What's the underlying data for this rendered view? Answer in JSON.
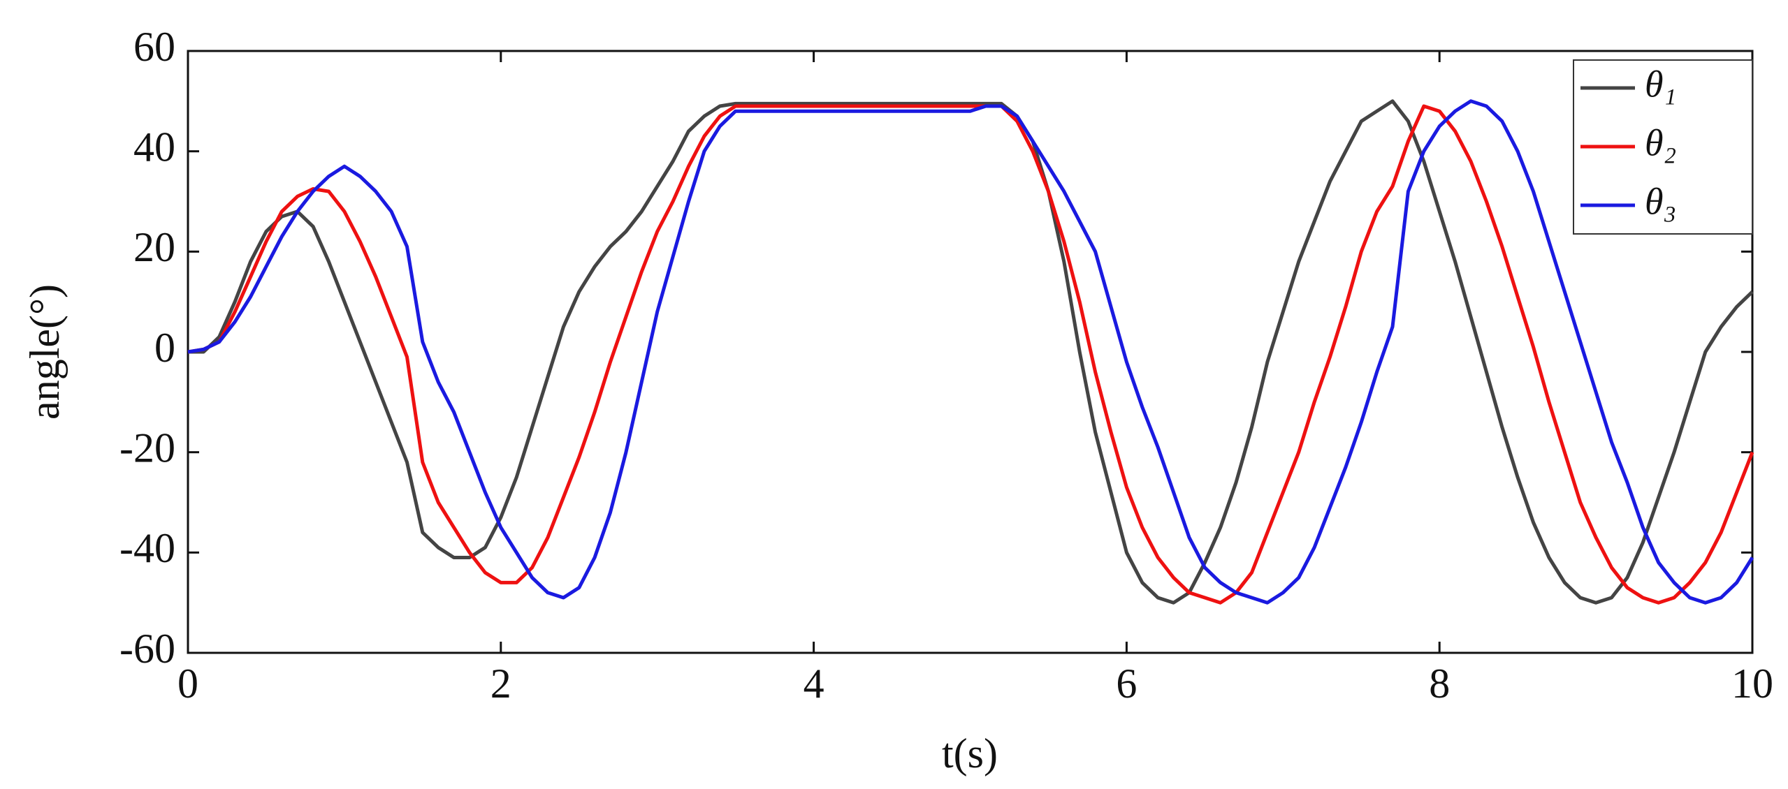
{
  "chart_data": {
    "type": "line",
    "xlabel": "t(s)",
    "ylabel": "angle(°)",
    "xlim": [
      0,
      10
    ],
    "ylim": [
      -60,
      60
    ],
    "xticks": [
      0,
      2,
      4,
      6,
      8,
      10
    ],
    "yticks": [
      -60,
      -40,
      -20,
      0,
      20,
      40,
      60
    ],
    "legend": "upper right",
    "x": [
      0,
      0.1,
      0.2,
      0.3,
      0.4,
      0.5,
      0.6,
      0.7,
      0.8,
      0.9,
      1,
      1.1,
      1.2,
      1.3,
      1.4,
      1.5,
      1.6,
      1.7,
      1.8,
      1.9,
      2,
      2.1,
      2.2,
      2.3,
      2.4,
      2.5,
      2.6,
      2.7,
      2.8,
      2.9,
      3,
      3.1,
      3.2,
      3.3,
      3.4,
      3.5,
      3.6,
      3.7,
      3.8,
      3.9,
      4,
      4.1,
      4.2,
      4.3,
      4.4,
      4.5,
      4.6,
      4.7,
      4.8,
      4.9,
      5,
      5.1,
      5.2,
      5.3,
      5.4,
      5.5,
      5.6,
      5.7,
      5.8,
      5.9,
      6,
      6.1,
      6.2,
      6.3,
      6.4,
      6.5,
      6.6,
      6.7,
      6.8,
      6.9,
      7,
      7.1,
      7.2,
      7.3,
      7.4,
      7.5,
      7.6,
      7.7,
      7.8,
      7.9,
      8,
      8.1,
      8.2,
      8.3,
      8.4,
      8.5,
      8.6,
      8.7,
      8.8,
      8.9,
      9,
      9.1,
      9.2,
      9.3,
      9.4,
      9.5,
      9.6,
      9.7,
      9.8,
      9.9,
      10
    ],
    "series": [
      {
        "name": "θ₁",
        "color": "#444444",
        "values": [
          0,
          0,
          3,
          10,
          18,
          24,
          27,
          28,
          25,
          18,
          10,
          2,
          -6,
          -14,
          -22,
          -36,
          -39,
          -41,
          -41,
          -39,
          -33,
          -25,
          -15,
          -5,
          5,
          12,
          17,
          21,
          24,
          28,
          33,
          38,
          44,
          47,
          49,
          49.5,
          49.5,
          49.5,
          49.5,
          49.5,
          49.5,
          49.5,
          49.5,
          49.5,
          49.5,
          49.5,
          49.5,
          49.5,
          49.5,
          49.5,
          49.5,
          49.5,
          49.5,
          47,
          42,
          32,
          18,
          0,
          -16,
          -28,
          -40,
          -46,
          -49,
          -50,
          -48,
          -42,
          -35,
          -26,
          -15,
          -2,
          8,
          18,
          26,
          34,
          40,
          46,
          48,
          50,
          46,
          38,
          28,
          18,
          7,
          -4,
          -15,
          -25,
          -34,
          -41,
          -46,
          -49,
          -50,
          -49,
          -45,
          -38,
          -29,
          -20,
          -10,
          0,
          5,
          9,
          12
        ]
      },
      {
        "name": "θ₂",
        "color": "#ee1111",
        "values": [
          0,
          0.5,
          2,
          8,
          15,
          22,
          28,
          31,
          32.5,
          32,
          28,
          22,
          15,
          7,
          -1,
          -22,
          -30,
          -35,
          -40,
          -44,
          -46,
          -46,
          -43,
          -37,
          -29,
          -21,
          -12,
          -2,
          7,
          16,
          24,
          30,
          37,
          43,
          47,
          49,
          49,
          49,
          49,
          49,
          49,
          49,
          49,
          49,
          49,
          49,
          49,
          49,
          49,
          49,
          49,
          49,
          49,
          46,
          40,
          32,
          22,
          10,
          -4,
          -16,
          -27,
          -35,
          -41,
          -45,
          -48,
          -49,
          -50,
          -48,
          -44,
          -36,
          -28,
          -20,
          -10,
          -1,
          9,
          20,
          28,
          33,
          42,
          49,
          48,
          44,
          38,
          30,
          21,
          11,
          1,
          -10,
          -20,
          -30,
          -37,
          -43,
          -47,
          -49,
          -50,
          -49,
          -46,
          -42,
          -36,
          -28,
          -20
        ]
      },
      {
        "name": "θ₃",
        "color": "#1a1ae0",
        "values": [
          0,
          0.5,
          2,
          6,
          11,
          17,
          23,
          28,
          32,
          35,
          37,
          35,
          32,
          28,
          21,
          2,
          -6,
          -12,
          -20,
          -28,
          -35,
          -40,
          -45,
          -48,
          -49,
          -47,
          -41,
          -32,
          -20,
          -6,
          8,
          19,
          30,
          40,
          45,
          48,
          48,
          48,
          48,
          48,
          48,
          48,
          48,
          48,
          48,
          48,
          48,
          48,
          48,
          48,
          48,
          49,
          49,
          47,
          42,
          37,
          32,
          26,
          20,
          9,
          -2,
          -11,
          -19,
          -28,
          -37,
          -43,
          -46,
          -48,
          -49,
          -50,
          -48,
          -45,
          -39,
          -31,
          -23,
          -14,
          -4,
          5,
          32,
          40,
          45,
          48,
          50,
          49,
          46,
          40,
          32,
          22,
          12,
          2,
          -8,
          -18,
          -26,
          -35,
          -42,
          -46,
          -49,
          -50,
          -49,
          -46,
          -41
        ]
      }
    ]
  }
}
